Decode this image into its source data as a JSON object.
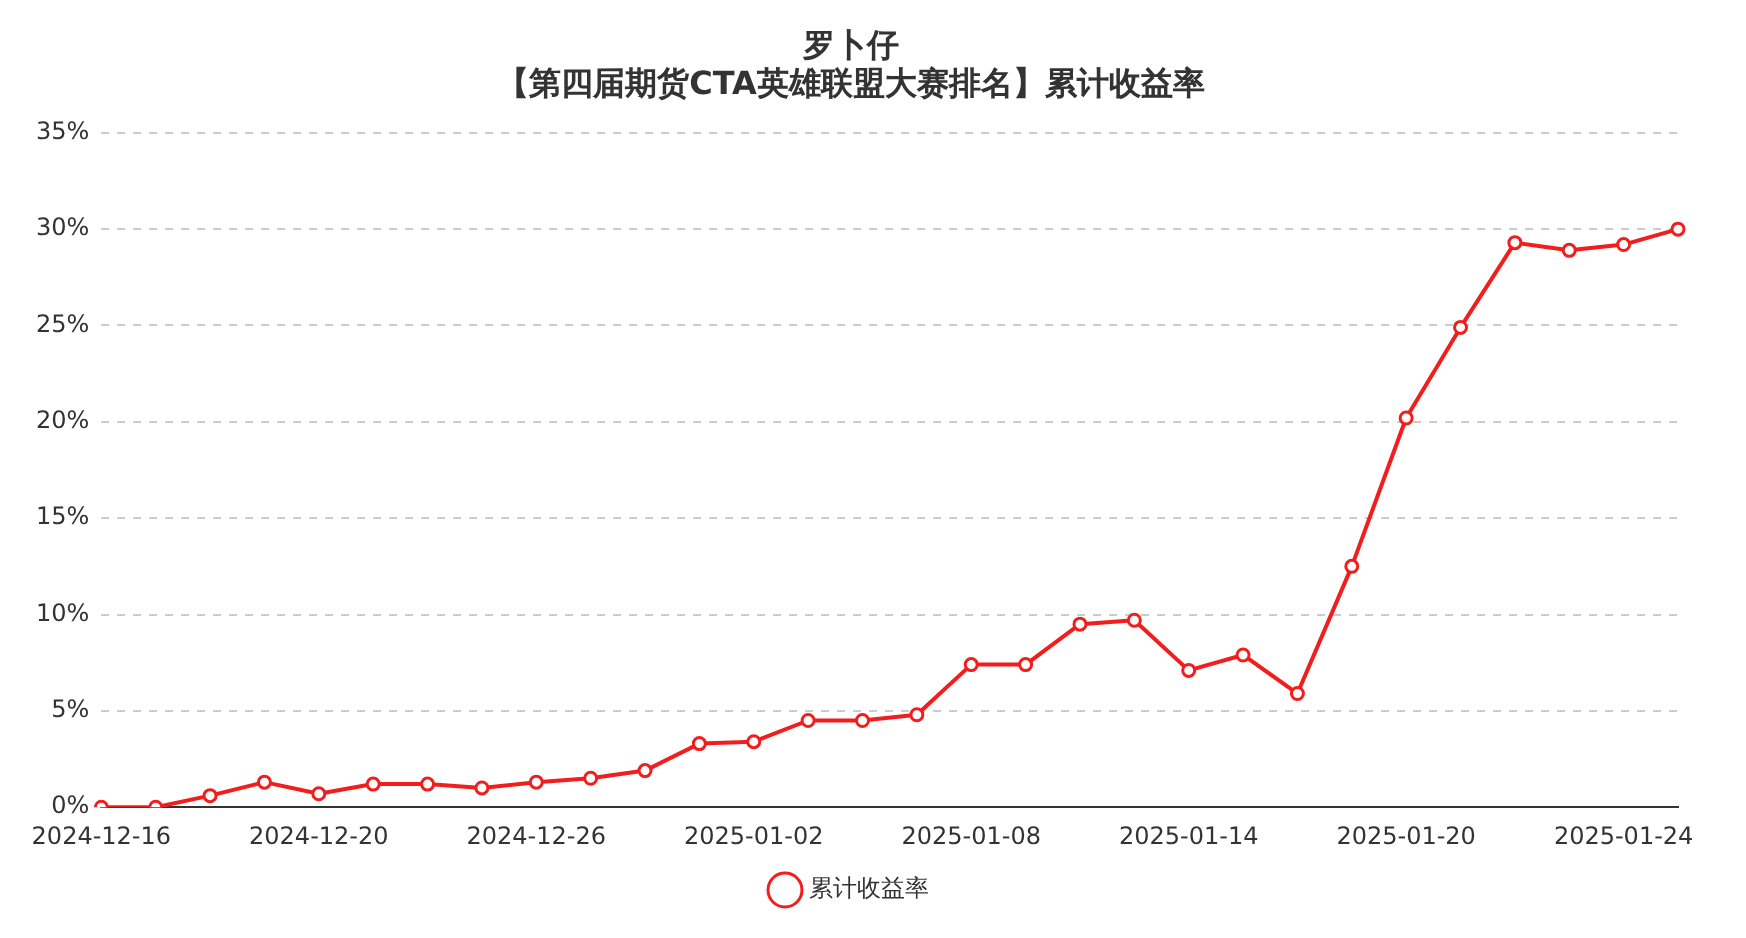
{
  "chart_data": {
    "type": "line",
    "title": "罗卜仔",
    "subtitle": "【第四届期货CTA英雄联盟大赛排名】累计收益率",
    "categories": [
      "2024-12-16",
      null,
      null,
      null,
      "2024-12-20",
      null,
      null,
      null,
      "2024-12-26",
      null,
      null,
      null,
      "2025-01-02",
      null,
      null,
      null,
      "2025-01-08",
      null,
      null,
      null,
      "2025-01-14",
      null,
      null,
      null,
      "2025-01-20",
      null,
      null,
      null,
      "2025-01-24",
      null
    ],
    "series": [
      {
        "name": "累计收益率",
        "color": "#f21d1d",
        "values": [
          0,
          0,
          0.6,
          1.3,
          0.7,
          1.2,
          1.2,
          1.0,
          1.3,
          1.5,
          1.9,
          3.3,
          3.4,
          4.5,
          4.5,
          4.8,
          7.4,
          7.4,
          9.5,
          9.7,
          7.1,
          7.9,
          5.9,
          12.5,
          20.2,
          24.9,
          29.3,
          28.9,
          29.2,
          30.0
        ]
      }
    ],
    "ylim": [
      0,
      35
    ],
    "yticks": [
      {
        "value": 0,
        "label": "0%"
      },
      {
        "value": 5,
        "label": "5%"
      },
      {
        "value": 10,
        "label": "10%"
      },
      {
        "value": 15,
        "label": "15%"
      },
      {
        "value": 20,
        "label": "20%"
      },
      {
        "value": 25,
        "label": "25%"
      },
      {
        "value": 30,
        "label": "30%"
      },
      {
        "value": 35,
        "label": "35%"
      }
    ],
    "grid": "y",
    "legend": "bottom",
    "marker": "circle",
    "line_style": "solid"
  }
}
